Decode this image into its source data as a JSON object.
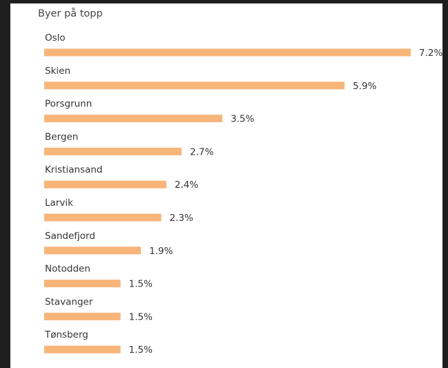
{
  "chart_data": {
    "type": "bar",
    "title": "Byer på topp",
    "categories": [
      "Oslo",
      "Skien",
      "Porsgrunn",
      "Bergen",
      "Kristiansand",
      "Larvik",
      "Sandefjord",
      "Notodden",
      "Stavanger",
      "Tønsberg"
    ],
    "values": [
      7.2,
      5.9,
      3.5,
      2.7,
      2.4,
      2.3,
      1.9,
      1.5,
      1.5,
      1.5
    ],
    "value_labels": [
      "7.2%",
      "5.9%",
      "3.5%",
      "2.7%",
      "2.4%",
      "2.3%",
      "1.9%",
      "1.5%",
      "1.5%",
      "1.5%"
    ],
    "color": "#f8b57a"
  }
}
